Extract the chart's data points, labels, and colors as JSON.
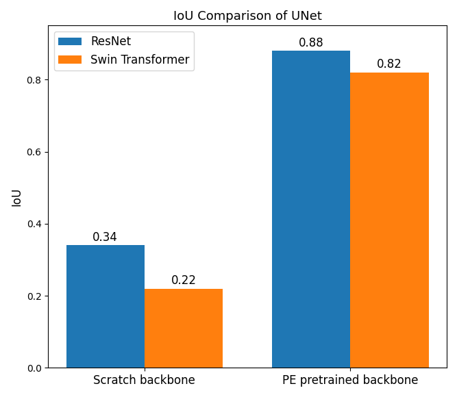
{
  "title": "IoU Comparison of UNet",
  "categories": [
    "Scratch backbone",
    "PE pretrained backbone"
  ],
  "series": [
    {
      "label": "ResNet",
      "values": [
        0.34,
        0.88
      ],
      "color": "#1f77b4"
    },
    {
      "label": "Swin Transformer",
      "values": [
        0.22,
        0.82
      ],
      "color": "#ff7f0e"
    }
  ],
  "ylabel": "IoU",
  "ylim": [
    0.0,
    0.95
  ],
  "bar_width": 0.38,
  "label_fontsize": 12,
  "title_fontsize": 13,
  "tick_fontsize": 12,
  "annotation_fontsize": 12,
  "background_color": "#ffffff",
  "legend_loc": "upper left",
  "figsize": [
    6.67,
    5.8
  ],
  "dpi": 100
}
